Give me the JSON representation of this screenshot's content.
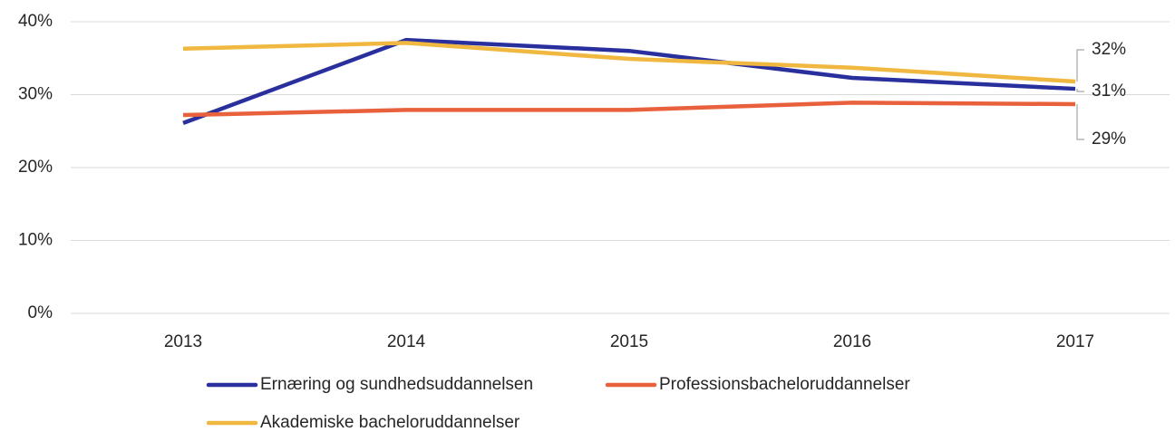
{
  "chart_data": {
    "type": "line",
    "categories": [
      "2013",
      "2014",
      "2015",
      "2016",
      "2017"
    ],
    "series": [
      {
        "name": "Ernæring og sundhedsuddannelsen",
        "color": "#2a2f9e",
        "values": [
          26.1,
          37.5,
          36.0,
          32.3,
          30.8
        ],
        "value_labels": [
          null,
          null,
          null,
          null,
          "31%"
        ]
      },
      {
        "name": "Professionsbacheloruddannelser",
        "color": "#e8603c",
        "values": [
          27.2,
          27.9,
          27.9,
          28.9,
          28.7
        ],
        "value_labels": [
          null,
          null,
          null,
          null,
          "29%"
        ]
      },
      {
        "name": "Akademiske bacheloruddannelser",
        "color": "#f0b840",
        "values": [
          36.3,
          37.1,
          34.9,
          33.7,
          31.8
        ],
        "value_labels": [
          null,
          null,
          null,
          null,
          "32%"
        ]
      }
    ],
    "ylim": [
      0,
      40
    ],
    "yticks": [
      {
        "value": 0,
        "label": "0%"
      },
      {
        "value": 10,
        "label": "10%"
      },
      {
        "value": 20,
        "label": "20%"
      },
      {
        "value": 30,
        "label": "30%"
      },
      {
        "value": 40,
        "label": "40%"
      }
    ],
    "grid": true
  }
}
